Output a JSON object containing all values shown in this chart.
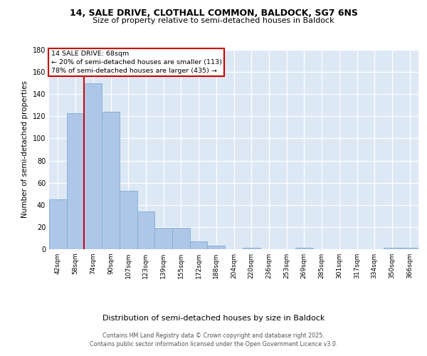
{
  "title1": "14, SALE DRIVE, CLOTHALL COMMON, BALDOCK, SG7 6NS",
  "title2": "Size of property relative to semi-detached houses in Baldock",
  "xlabel": "Distribution of semi-detached houses by size in Baldock",
  "ylabel": "Number of semi-detached properties",
  "categories": [
    "42sqm",
    "58sqm",
    "74sqm",
    "90sqm",
    "107sqm",
    "123sqm",
    "139sqm",
    "155sqm",
    "172sqm",
    "188sqm",
    "204sqm",
    "220sqm",
    "236sqm",
    "253sqm",
    "269sqm",
    "285sqm",
    "301sqm",
    "317sqm",
    "334sqm",
    "350sqm",
    "366sqm"
  ],
  "values": [
    45,
    123,
    150,
    124,
    53,
    34,
    19,
    19,
    7,
    3,
    0,
    1,
    0,
    0,
    1,
    0,
    0,
    0,
    0,
    1,
    1
  ],
  "bar_color": "#aec6e8",
  "bar_edgecolor": "#7aaed6",
  "vline_x": 1.5,
  "vline_color": "#cc0000",
  "annotation_title": "14 SALE DRIVE: 68sqm",
  "annotation_line2": "← 20% of semi-detached houses are smaller (113)",
  "annotation_line3": "78% of semi-detached houses are larger (435) →",
  "annotation_box_color": "#ffffff",
  "annotation_box_edgecolor": "#cc0000",
  "ylim": [
    0,
    180
  ],
  "yticks": [
    0,
    20,
    40,
    60,
    80,
    100,
    120,
    140,
    160,
    180
  ],
  "background_color": "#dde8f5",
  "grid_color": "#ffffff",
  "fig_background": "#ffffff",
  "footer_line1": "Contains HM Land Registry data © Crown copyright and database right 2025.",
  "footer_line2": "Contains public sector information licensed under the Open Government Licence v3.0.",
  "title1_fontsize": 9.0,
  "title2_fontsize": 8.0,
  "ylabel_fontsize": 7.5,
  "xlabel_fontsize": 8.0,
  "tick_fontsize": 6.5,
  "ytick_fontsize": 7.0,
  "annotation_fontsize": 6.8,
  "footer_fontsize": 5.8
}
